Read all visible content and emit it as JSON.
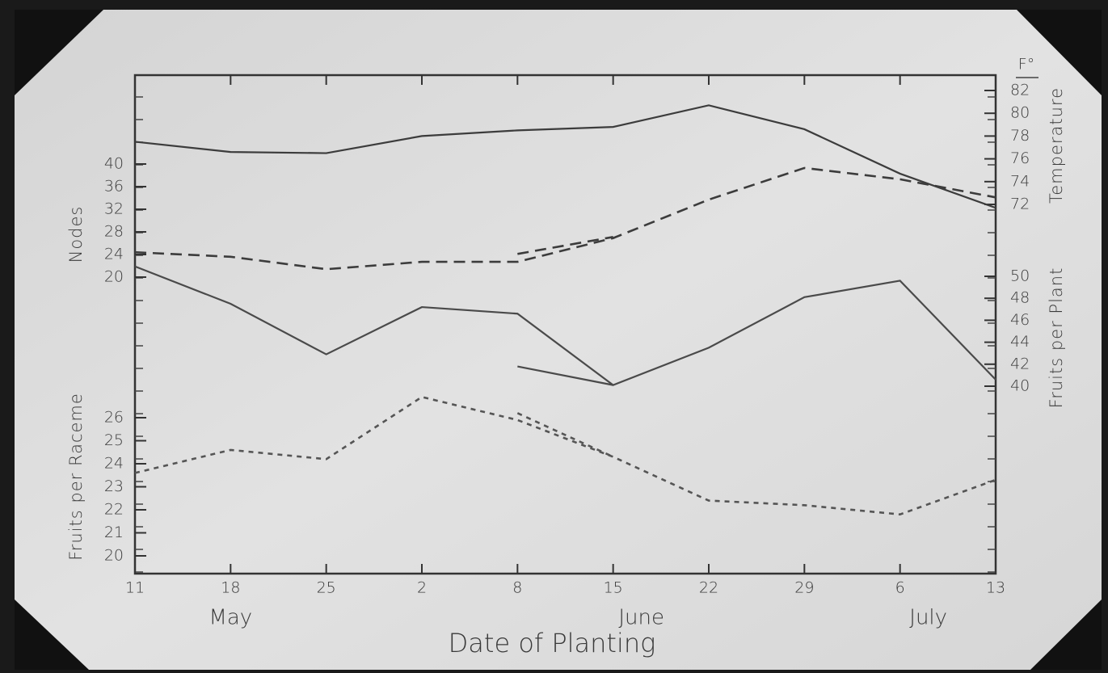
{
  "chart_data": {
    "type": "line",
    "xlabel": "Date of Planting",
    "categories": [
      "11",
      "18",
      "25",
      "2",
      "8",
      "15",
      "22",
      "29",
      "6",
      "13"
    ],
    "month_labels": [
      null,
      "May",
      null,
      null,
      null,
      "June",
      null,
      null,
      "July",
      null
    ],
    "axes": [
      {
        "label": "Temperature",
        "unit": "F°",
        "side": "right",
        "ylim": [
          72,
          82
        ],
        "yticks": [
          72,
          74,
          76,
          78,
          80,
          82
        ]
      },
      {
        "label": "Nodes",
        "side": "left",
        "ylim": [
          20,
          40
        ],
        "yticks": [
          20,
          24,
          28,
          32,
          36,
          40
        ]
      },
      {
        "label": "Fruits per Plant",
        "side": "right",
        "ylim": [
          40,
          50
        ],
        "yticks": [
          40,
          42,
          44,
          46,
          48,
          50
        ]
      },
      {
        "label": "Fruits per Raceme",
        "side": "left",
        "ylim": [
          20,
          26
        ],
        "yticks": [
          20,
          21,
          22,
          23,
          24,
          25,
          26
        ]
      }
    ],
    "series": [
      {
        "axis": 0,
        "style": "solid",
        "color": "#3c3c3c",
        "values": [
          77.5,
          76.6,
          76.5,
          78.0,
          78.5,
          78.8,
          80.7,
          78.6,
          74.7,
          71.7
        ]
      },
      {
        "axis": 1,
        "style": "dashed",
        "color": "#3c3c3c",
        "values": [
          24.4,
          23.6,
          21.4,
          22.7,
          22.7,
          26.9,
          33.7,
          39.3,
          37.3,
          34.1
        ]
      },
      {
        "axis": 1,
        "style": "dashed",
        "color": "#3c3c3c",
        "values": [
          null,
          null,
          null,
          null,
          24.1,
          27.1,
          null,
          null,
          null,
          null
        ]
      },
      {
        "axis": 2,
        "style": "solid",
        "color": "#4a4a4a",
        "values": [
          50.9,
          47.5,
          42.9,
          47.2,
          46.6,
          40.1,
          43.5,
          48.1,
          49.6,
          40.6
        ]
      },
      {
        "axis": 2,
        "style": "solid",
        "color": "#4a4a4a",
        "values": [
          null,
          null,
          null,
          null,
          41.8,
          40.1,
          null,
          null,
          null,
          null
        ]
      },
      {
        "axis": 3,
        "style": "dotted",
        "color": "#555555",
        "values": [
          23.6,
          24.6,
          24.2,
          26.9,
          25.9,
          24.3,
          22.4,
          22.2,
          21.8,
          23.3
        ]
      },
      {
        "axis": 3,
        "style": "dotted",
        "color": "#555555",
        "values": [
          null,
          null,
          null,
          null,
          26.2,
          24.3,
          null,
          null,
          null,
          null
        ]
      }
    ]
  }
}
